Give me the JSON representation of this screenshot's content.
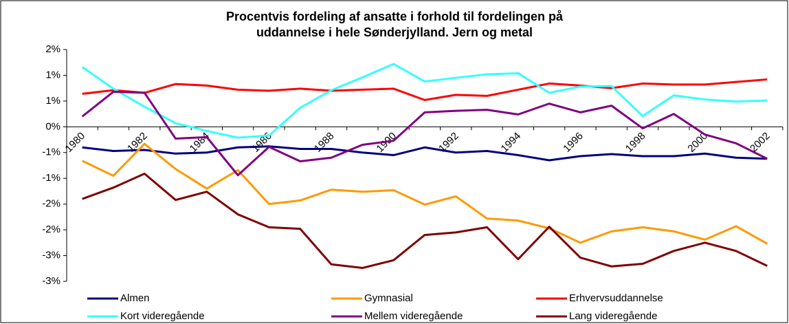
{
  "chart_data": {
    "type": "line",
    "title": [
      "Procentvis fordeling af ansatte i forhold til fordelingen på",
      "uddannelse i hele Sønderjylland. Jern og metal"
    ],
    "categories": [
      "1980",
      null,
      "1982",
      null,
      "1984",
      null,
      "1986",
      null,
      "1988",
      null,
      "1990",
      null,
      "1992",
      null,
      "1994",
      null,
      "1996",
      null,
      "1998",
      null,
      "2000",
      null,
      "2002"
    ],
    "ylim": [
      -3,
      1.5
    ],
    "yticks": [
      {
        "value": 1.5,
        "label": "2%"
      },
      {
        "value": 1.0,
        "label": "1%"
      },
      {
        "value": 0.5,
        "label": "1%"
      },
      {
        "value": 0,
        "label": "0%"
      },
      {
        "value": -0.5,
        "label": "-1%"
      },
      {
        "value": -1.0,
        "label": "-1%"
      },
      {
        "value": -1.5,
        "label": "-2%"
      },
      {
        "value": -2.0,
        "label": "-2%"
      },
      {
        "value": -2.5,
        "label": "-3%"
      },
      {
        "value": -3.0,
        "label": "-3%"
      }
    ],
    "series": [
      {
        "name": "Almen",
        "color": "#000080",
        "values": [
          -0.4,
          -0.47,
          -0.45,
          -0.52,
          -0.5,
          -0.4,
          -0.38,
          -0.43,
          -0.43,
          -0.5,
          -0.55,
          -0.4,
          -0.5,
          -0.47,
          -0.55,
          -0.65,
          -0.57,
          -0.53,
          -0.57,
          -0.57,
          -0.52,
          -0.6,
          -0.62
        ]
      },
      {
        "name": "Gymnasial",
        "color": "#ff9900",
        "values": [
          -0.66,
          -0.95,
          -0.33,
          -0.82,
          -1.2,
          -0.84,
          -1.5,
          -1.43,
          -1.22,
          -1.26,
          -1.23,
          -1.51,
          -1.35,
          -1.78,
          -1.82,
          -1.97,
          -2.25,
          -2.03,
          -1.95,
          -2.03,
          -2.19,
          -1.93,
          -2.27
        ]
      },
      {
        "name": "Erhvervsuddannelse",
        "color": "#ff0000",
        "values": [
          0.64,
          0.71,
          0.66,
          0.83,
          0.8,
          0.72,
          0.7,
          0.74,
          0.7,
          0.72,
          0.74,
          0.52,
          0.62,
          0.6,
          0.72,
          0.84,
          0.8,
          0.75,
          0.84,
          0.82,
          0.82,
          0.87,
          0.92
        ]
      },
      {
        "name": "Kort videregående",
        "color": "#33ffff",
        "values": [
          1.16,
          0.74,
          0.39,
          0.07,
          -0.08,
          -0.21,
          -0.17,
          0.37,
          0.71,
          0.96,
          1.22,
          0.88,
          0.95,
          1.02,
          1.04,
          0.66,
          0.78,
          0.79,
          0.21,
          0.61,
          0.53,
          0.49,
          0.51
        ]
      },
      {
        "name": "Mellem videregående",
        "color": "#800080",
        "values": [
          0.2,
          0.68,
          0.66,
          -0.23,
          -0.2,
          -0.94,
          -0.39,
          -0.67,
          -0.6,
          -0.35,
          -0.27,
          0.28,
          0.31,
          0.33,
          0.24,
          0.45,
          0.28,
          0.41,
          -0.03,
          0.25,
          -0.15,
          -0.32,
          -0.62
        ]
      },
      {
        "name": "Lang videregående",
        "color": "#800000",
        "values": [
          -1.4,
          -1.18,
          -0.91,
          -1.42,
          -1.26,
          -1.7,
          -1.95,
          -1.98,
          -2.67,
          -2.74,
          -2.59,
          -2.1,
          -2.05,
          -1.95,
          -2.57,
          -1.94,
          -2.54,
          -2.71,
          -2.66,
          -2.41,
          -2.25,
          -2.41,
          -2.7
        ]
      }
    ]
  }
}
